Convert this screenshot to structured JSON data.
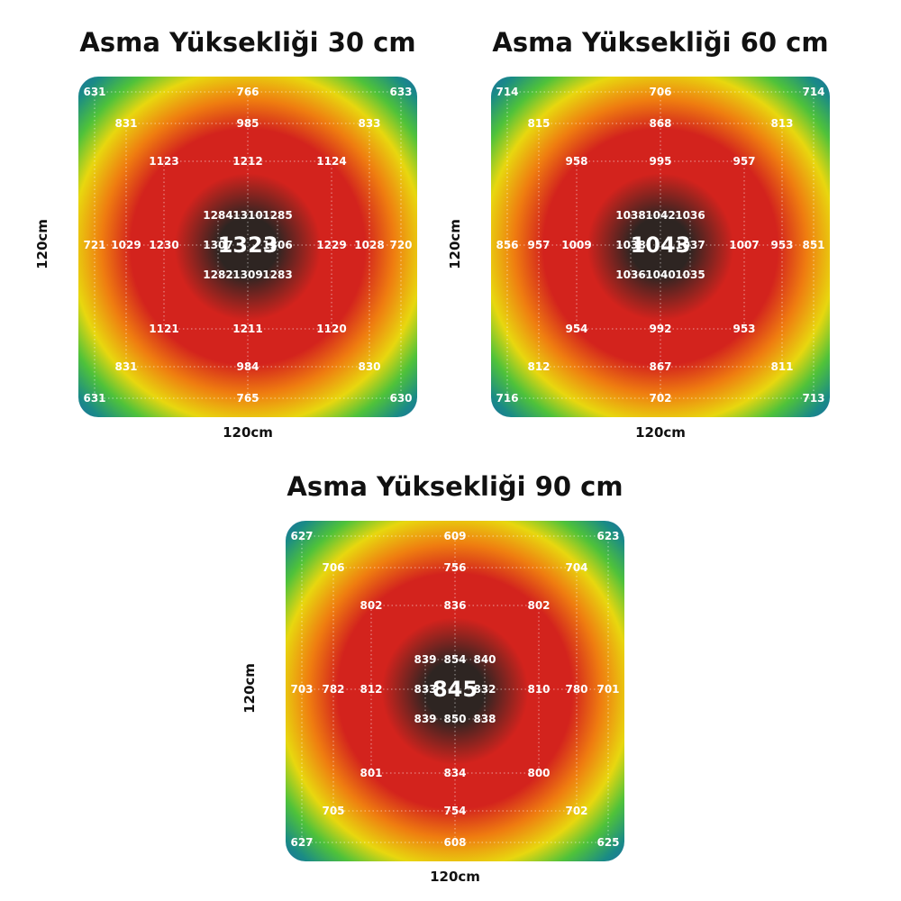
{
  "colors": {
    "center": "#2e2522",
    "red": "#d3231d",
    "orange": "#ef7d10",
    "yellow": "#e8d70f",
    "green": "#4fc23a",
    "teal": "#1a8b86",
    "blue": "#1d6aa5",
    "label": "#ffffff",
    "grid": "#ffffff"
  },
  "chart_data": [
    {
      "type": "heatmap",
      "title": "Asma Yüksekliği 30 cm",
      "xlabel": "120cm",
      "ylabel": "120cm",
      "center_value": "1323",
      "points": [
        {
          "ring": 0,
          "col": 0,
          "row": 0,
          "value": "1323"
        },
        {
          "ring": 1,
          "col": -1,
          "row": -1,
          "value": "1284"
        },
        {
          "ring": 1,
          "col": 0,
          "row": -1,
          "value": "1310"
        },
        {
          "ring": 1,
          "col": 1,
          "row": -1,
          "value": "1285"
        },
        {
          "ring": 1,
          "col": -1,
          "row": 0,
          "value": "1307"
        },
        {
          "ring": 1,
          "col": 1,
          "row": 0,
          "value": "1306"
        },
        {
          "ring": 1,
          "col": -1,
          "row": 1,
          "value": "1282"
        },
        {
          "ring": 1,
          "col": 0,
          "row": 1,
          "value": "1309"
        },
        {
          "ring": 1,
          "col": 1,
          "row": 1,
          "value": "1283"
        },
        {
          "ring": 2,
          "col": -1,
          "row": -1,
          "value": "1123"
        },
        {
          "ring": 2,
          "col": 0,
          "row": -1,
          "value": "1212"
        },
        {
          "ring": 2,
          "col": 1,
          "row": -1,
          "value": "1124"
        },
        {
          "ring": 2,
          "col": -1,
          "row": 0,
          "value": "1230"
        },
        {
          "ring": 2,
          "col": 1,
          "row": 0,
          "value": "1229"
        },
        {
          "ring": 2,
          "col": -1,
          "row": 1,
          "value": "1121"
        },
        {
          "ring": 2,
          "col": 0,
          "row": 1,
          "value": "1211"
        },
        {
          "ring": 2,
          "col": 1,
          "row": 1,
          "value": "1120"
        },
        {
          "ring": 3,
          "col": -1,
          "row": -1,
          "value": "831"
        },
        {
          "ring": 3,
          "col": 0,
          "row": -1,
          "value": "985"
        },
        {
          "ring": 3,
          "col": 1,
          "row": -1,
          "value": "833"
        },
        {
          "ring": 3,
          "col": -1,
          "row": 0,
          "value": "1029"
        },
        {
          "ring": 3,
          "col": 1,
          "row": 0,
          "value": "1028"
        },
        {
          "ring": 3,
          "col": -1,
          "row": 1,
          "value": "831"
        },
        {
          "ring": 3,
          "col": 0,
          "row": 1,
          "value": "984"
        },
        {
          "ring": 3,
          "col": 1,
          "row": 1,
          "value": "830"
        },
        {
          "ring": 4,
          "col": -1,
          "row": -1,
          "value": "631"
        },
        {
          "ring": 4,
          "col": 0,
          "row": -1,
          "value": "766"
        },
        {
          "ring": 4,
          "col": 1,
          "row": -1,
          "value": "633"
        },
        {
          "ring": 4,
          "col": -1,
          "row": 0,
          "value": "721"
        },
        {
          "ring": 4,
          "col": 1,
          "row": 0,
          "value": "720"
        },
        {
          "ring": 4,
          "col": -1,
          "row": 1,
          "value": "631"
        },
        {
          "ring": 4,
          "col": 0,
          "row": 1,
          "value": "765"
        },
        {
          "ring": 4,
          "col": 1,
          "row": 1,
          "value": "630"
        }
      ]
    },
    {
      "type": "heatmap",
      "title": "Asma Yüksekliği 60 cm",
      "xlabel": "120cm",
      "ylabel": "120cm",
      "center_value": "1043",
      "points": [
        {
          "ring": 0,
          "col": 0,
          "row": 0,
          "value": "1043"
        },
        {
          "ring": 1,
          "col": -1,
          "row": -1,
          "value": "1038"
        },
        {
          "ring": 1,
          "col": 0,
          "row": -1,
          "value": "1042"
        },
        {
          "ring": 1,
          "col": 1,
          "row": -1,
          "value": "1036"
        },
        {
          "ring": 1,
          "col": -1,
          "row": 0,
          "value": "1038"
        },
        {
          "ring": 1,
          "col": 1,
          "row": 0,
          "value": "1037"
        },
        {
          "ring": 1,
          "col": -1,
          "row": 1,
          "value": "1036"
        },
        {
          "ring": 1,
          "col": 0,
          "row": 1,
          "value": "1040"
        },
        {
          "ring": 1,
          "col": 1,
          "row": 1,
          "value": "1035"
        },
        {
          "ring": 2,
          "col": -1,
          "row": -1,
          "value": "958"
        },
        {
          "ring": 2,
          "col": 0,
          "row": -1,
          "value": "995"
        },
        {
          "ring": 2,
          "col": 1,
          "row": -1,
          "value": "957"
        },
        {
          "ring": 2,
          "col": -1,
          "row": 0,
          "value": "1009"
        },
        {
          "ring": 2,
          "col": 1,
          "row": 0,
          "value": "1007"
        },
        {
          "ring": 2,
          "col": -1,
          "row": 1,
          "value": "954"
        },
        {
          "ring": 2,
          "col": 0,
          "row": 1,
          "value": "992"
        },
        {
          "ring": 2,
          "col": 1,
          "row": 1,
          "value": "953"
        },
        {
          "ring": 3,
          "col": -1,
          "row": -1,
          "value": "815"
        },
        {
          "ring": 3,
          "col": 0,
          "row": -1,
          "value": "868"
        },
        {
          "ring": 3,
          "col": 1,
          "row": -1,
          "value": "813"
        },
        {
          "ring": 3,
          "col": -1,
          "row": 0,
          "value": "957"
        },
        {
          "ring": 3,
          "col": 1,
          "row": 0,
          "value": "953"
        },
        {
          "ring": 3,
          "col": -1,
          "row": 1,
          "value": "812"
        },
        {
          "ring": 3,
          "col": 0,
          "row": 1,
          "value": "867"
        },
        {
          "ring": 3,
          "col": 1,
          "row": 1,
          "value": "811"
        },
        {
          "ring": 4,
          "col": -1,
          "row": -1,
          "value": "714"
        },
        {
          "ring": 4,
          "col": 0,
          "row": -1,
          "value": "706"
        },
        {
          "ring": 4,
          "col": 1,
          "row": -1,
          "value": "714"
        },
        {
          "ring": 4,
          "col": -1,
          "row": 0,
          "value": "856"
        },
        {
          "ring": 4,
          "col": 1,
          "row": 0,
          "value": "851"
        },
        {
          "ring": 4,
          "col": -1,
          "row": 1,
          "value": "716"
        },
        {
          "ring": 4,
          "col": 0,
          "row": 1,
          "value": "702"
        },
        {
          "ring": 4,
          "col": 1,
          "row": 1,
          "value": "713"
        }
      ]
    },
    {
      "type": "heatmap",
      "title": "Asma Yüksekliği 90 cm",
      "xlabel": "120cm",
      "ylabel": "120cm",
      "center_value": "845",
      "points": [
        {
          "ring": 0,
          "col": 0,
          "row": 0,
          "value": "845"
        },
        {
          "ring": 1,
          "col": -1,
          "row": -1,
          "value": "839"
        },
        {
          "ring": 1,
          "col": 0,
          "row": -1,
          "value": "854"
        },
        {
          "ring": 1,
          "col": 1,
          "row": -1,
          "value": "840"
        },
        {
          "ring": 1,
          "col": -1,
          "row": 0,
          "value": "833"
        },
        {
          "ring": 1,
          "col": 1,
          "row": 0,
          "value": "832"
        },
        {
          "ring": 1,
          "col": -1,
          "row": 1,
          "value": "839"
        },
        {
          "ring": 1,
          "col": 0,
          "row": 1,
          "value": "850"
        },
        {
          "ring": 1,
          "col": 1,
          "row": 1,
          "value": "838"
        },
        {
          "ring": 2,
          "col": -1,
          "row": -1,
          "value": "802"
        },
        {
          "ring": 2,
          "col": 0,
          "row": -1,
          "value": "836"
        },
        {
          "ring": 2,
          "col": 1,
          "row": -1,
          "value": "802"
        },
        {
          "ring": 2,
          "col": -1,
          "row": 0,
          "value": "812"
        },
        {
          "ring": 2,
          "col": 1,
          "row": 0,
          "value": "810"
        },
        {
          "ring": 2,
          "col": -1,
          "row": 1,
          "value": "801"
        },
        {
          "ring": 2,
          "col": 0,
          "row": 1,
          "value": "834"
        },
        {
          "ring": 2,
          "col": 1,
          "row": 1,
          "value": "800"
        },
        {
          "ring": 3,
          "col": -1,
          "row": -1,
          "value": "706"
        },
        {
          "ring": 3,
          "col": 0,
          "row": -1,
          "value": "756"
        },
        {
          "ring": 3,
          "col": 1,
          "row": -1,
          "value": "704"
        },
        {
          "ring": 3,
          "col": -1,
          "row": 0,
          "value": "782"
        },
        {
          "ring": 3,
          "col": 1,
          "row": 0,
          "value": "780"
        },
        {
          "ring": 3,
          "col": -1,
          "row": 1,
          "value": "705"
        },
        {
          "ring": 3,
          "col": 0,
          "row": 1,
          "value": "754"
        },
        {
          "ring": 3,
          "col": 1,
          "row": 1,
          "value": "702"
        },
        {
          "ring": 4,
          "col": -1,
          "row": -1,
          "value": "627"
        },
        {
          "ring": 4,
          "col": 0,
          "row": -1,
          "value": "609"
        },
        {
          "ring": 4,
          "col": 1,
          "row": -1,
          "value": "623"
        },
        {
          "ring": 4,
          "col": -1,
          "row": 0,
          "value": "703"
        },
        {
          "ring": 4,
          "col": 1,
          "row": 0,
          "value": "701"
        },
        {
          "ring": 4,
          "col": -1,
          "row": 1,
          "value": "627"
        },
        {
          "ring": 4,
          "col": 0,
          "row": 1,
          "value": "608"
        },
        {
          "ring": 4,
          "col": 1,
          "row": 1,
          "value": "625"
        }
      ]
    }
  ]
}
